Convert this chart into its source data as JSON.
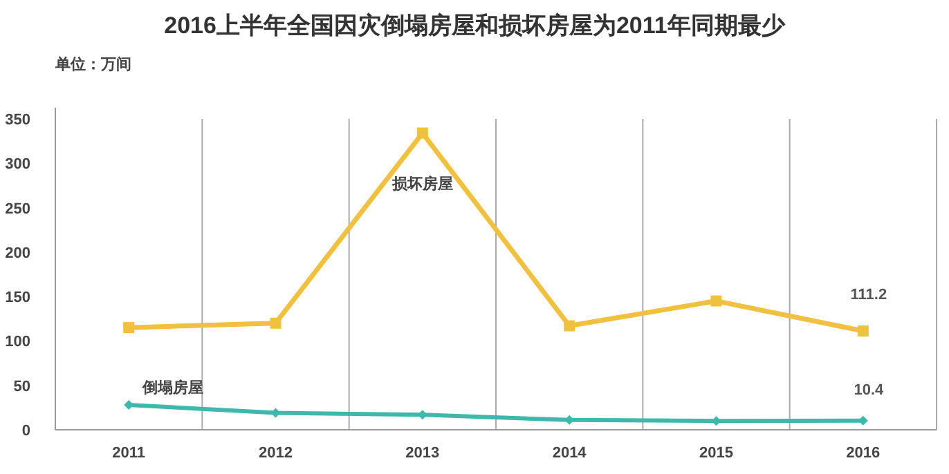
{
  "chart_data": {
    "type": "line",
    "title": "2016上半年全国因灾倒塌房屋和损坏房屋为2011年同期最少",
    "annotations": [
      "单位：万间"
    ],
    "categories": [
      "2011",
      "2012",
      "2013",
      "2014",
      "2015",
      "2016"
    ],
    "series": [
      {
        "name": "损坏房屋",
        "color": "#f0c040",
        "marker": "square",
        "values": [
          115,
          120,
          334,
          117,
          145,
          111.2
        ],
        "value_labels": [
          null,
          null,
          null,
          null,
          null,
          "111.2"
        ]
      },
      {
        "name": "倒塌房屋",
        "color": "#3fb8ab",
        "marker": "diamond",
        "values": [
          28,
          19,
          17,
          11,
          10,
          10.4
        ],
        "value_labels": [
          null,
          null,
          null,
          null,
          null,
          "10.4"
        ]
      }
    ],
    "ylim": [
      0,
      350
    ],
    "yticks": [
      0,
      50,
      100,
      150,
      200,
      250,
      300,
      350
    ],
    "grid": "x"
  }
}
